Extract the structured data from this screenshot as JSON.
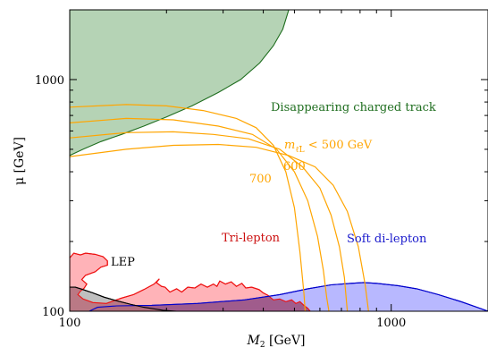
{
  "chart_data": {
    "type": "area",
    "xlabel": "M",
    "xlabel_sub": "2",
    "xlabel_unit": " [GeV]",
    "ylabel": "μ [GeV]",
    "xscale": "log",
    "yscale": "log",
    "xlim": [
      100,
      2000
    ],
    "ylim": [
      100,
      2000
    ],
    "x_ticks": [
      {
        "value": 100,
        "label": "100"
      },
      {
        "value": 1000,
        "label": "1000"
      }
    ],
    "y_ticks": [
      {
        "value": 100,
        "label": "100"
      },
      {
        "value": 1000,
        "label": "1000"
      }
    ],
    "colors": {
      "disappearing_fill": "#b5d3b5",
      "disappearing_line": "#1f6e1f",
      "trilepton_fill": "#ffb3b8",
      "trilepton_line": "#ee1111",
      "softdilepton_fill": "#b0b0ff",
      "softdilepton_line": "#0000cc",
      "lep_fill": "#b4b4b4",
      "lep_line": "#000000",
      "overlap_fill": "#a05c8c",
      "contour_line": "#ffa500",
      "disappearing_text": "#1f6e1f",
      "trilepton_text": "#cc1111",
      "softdilepton_text": "#1a1acc",
      "lep_text": "#000000",
      "contour_text": "#ffa500"
    },
    "regions": [
      {
        "name": "Disappearing charged track",
        "label": "Disappearing charged track",
        "fill_key": "disappearing_fill",
        "line_key": "disappearing_line",
        "boundary": [
          [
            100,
            470
          ],
          [
            110,
            500
          ],
          [
            125,
            540
          ],
          [
            145,
            580
          ],
          [
            170,
            630
          ],
          [
            200,
            690
          ],
          [
            240,
            770
          ],
          [
            290,
            880
          ],
          [
            340,
            1000
          ],
          [
            390,
            1180
          ],
          [
            430,
            1400
          ],
          [
            460,
            1650
          ],
          [
            480,
            2000
          ]
        ],
        "closure": "top-left"
      },
      {
        "name": "Tri-lepton",
        "label": "Tri-lepton",
        "fill_key": "trilepton_fill",
        "line_key": "trilepton_line",
        "boundary": [
          [
            100,
            170
          ],
          [
            103,
            178
          ],
          [
            108,
            175
          ],
          [
            112,
            178
          ],
          [
            120,
            176
          ],
          [
            127,
            172
          ],
          [
            131,
            165
          ],
          [
            131,
            158
          ],
          [
            125,
            155
          ],
          [
            120,
            148
          ],
          [
            112,
            143
          ],
          [
            109,
            137
          ],
          [
            113,
            131
          ],
          [
            111,
            126
          ],
          [
            108,
            122
          ],
          [
            106,
            118
          ],
          [
            110,
            113
          ],
          [
            118,
            109
          ],
          [
            130,
            108
          ],
          [
            145,
            114
          ],
          [
            158,
            118
          ],
          [
            170,
            124
          ],
          [
            183,
            131
          ],
          [
            190,
            138
          ],
          [
            186,
            133
          ],
          [
            193,
            128
          ],
          [
            198,
            127
          ],
          [
            205,
            121
          ],
          [
            215,
            125
          ],
          [
            223,
            121
          ],
          [
            233,
            127
          ],
          [
            245,
            126
          ],
          [
            256,
            131
          ],
          [
            268,
            127
          ],
          [
            280,
            131
          ],
          [
            287,
            128
          ],
          [
            293,
            135
          ],
          [
            305,
            131
          ],
          [
            318,
            134
          ],
          [
            330,
            128
          ],
          [
            343,
            132
          ],
          [
            353,
            126
          ],
          [
            368,
            127
          ],
          [
            388,
            124
          ],
          [
            400,
            120
          ],
          [
            414,
            117
          ],
          [
            430,
            112
          ],
          [
            450,
            113
          ],
          [
            470,
            110
          ],
          [
            490,
            112
          ],
          [
            505,
            108
          ],
          [
            520,
            110
          ],
          [
            535,
            106
          ],
          [
            550,
            103
          ],
          [
            560,
            100
          ]
        ],
        "closure": "bottom"
      },
      {
        "name": "Soft di-lepton",
        "label": "Soft di-lepton",
        "fill_key": "softdilepton_fill",
        "line_key": "softdilepton_line",
        "boundary": [
          [
            115,
            100
          ],
          [
            122,
            104
          ],
          [
            140,
            105.5
          ],
          [
            180,
            106
          ],
          [
            250,
            108
          ],
          [
            350,
            112
          ],
          [
            450,
            118
          ],
          [
            550,
            125
          ],
          [
            650,
            130
          ],
          [
            750,
            132
          ],
          [
            820,
            133
          ],
          [
            900,
            132
          ],
          [
            1050,
            129
          ],
          [
            1200,
            125
          ],
          [
            1400,
            118
          ],
          [
            1650,
            110
          ],
          [
            1850,
            104
          ],
          [
            2000,
            100
          ]
        ],
        "closure": "bottom"
      },
      {
        "name": "LEP",
        "label": "LEP",
        "fill_key": "lep_fill",
        "line_key": "lep_line",
        "boundary": [
          [
            100,
            127
          ],
          [
            104,
            127
          ],
          [
            110,
            124
          ],
          [
            118,
            120
          ],
          [
            128,
            115
          ],
          [
            140,
            111
          ],
          [
            155,
            107
          ],
          [
            170,
            104
          ],
          [
            195,
            101
          ],
          [
            215,
            100
          ]
        ],
        "closure": "bottom-left"
      }
    ],
    "contours": [
      {
        "label": "mₗ̃ < 500 GeV",
        "label_main": "m",
        "label_sub": "ℓ̃L",
        "label_rest": " < 500 GeV",
        "points": [
          [
            100,
            760
          ],
          [
            150,
            780
          ],
          [
            200,
            770
          ],
          [
            260,
            735
          ],
          [
            330,
            680
          ],
          [
            380,
            620
          ],
          [
            430,
            520
          ],
          [
            470,
            400
          ],
          [
            500,
            280
          ],
          [
            520,
            180
          ],
          [
            535,
            120
          ],
          [
            540,
            100
          ]
        ]
      },
      {
        "label": "600",
        "points": [
          [
            100,
            650
          ],
          [
            150,
            680
          ],
          [
            210,
            670
          ],
          [
            290,
            630
          ],
          [
            370,
            580
          ],
          [
            440,
            500
          ],
          [
            500,
            400
          ],
          [
            550,
            300
          ],
          [
            590,
            210
          ],
          [
            615,
            150
          ],
          [
            630,
            115
          ],
          [
            640,
            100
          ]
        ]
      },
      {
        "label": "700",
        "points": [
          [
            100,
            560
          ],
          [
            150,
            590
          ],
          [
            210,
            595
          ],
          [
            280,
            580
          ],
          [
            360,
            555
          ],
          [
            450,
            500
          ],
          [
            530,
            420
          ],
          [
            600,
            340
          ],
          [
            650,
            260
          ],
          [
            690,
            190
          ],
          [
            715,
            140
          ],
          [
            730,
            100
          ]
        ]
      },
      {
        "label": "",
        "points": [
          [
            100,
            465
          ],
          [
            150,
            500
          ],
          [
            210,
            520
          ],
          [
            290,
            525
          ],
          [
            380,
            510
          ],
          [
            480,
            470
          ],
          [
            580,
            420
          ],
          [
            660,
            350
          ],
          [
            730,
            270
          ],
          [
            790,
            190
          ],
          [
            830,
            130
          ],
          [
            850,
            100
          ]
        ]
      }
    ],
    "annotations": [
      {
        "text": "Disappearing charged track",
        "color_key": "disappearing_text"
      },
      {
        "text": "Tri-lepton",
        "color_key": "trilepton_text"
      },
      {
        "text": "Soft di-lepton",
        "color_key": "softdilepton_text"
      },
      {
        "text": "LEP",
        "color_key": "lep_text"
      },
      {
        "text": "600",
        "color_key": "contour_text"
      },
      {
        "text": "700",
        "color_key": "contour_text"
      }
    ]
  }
}
